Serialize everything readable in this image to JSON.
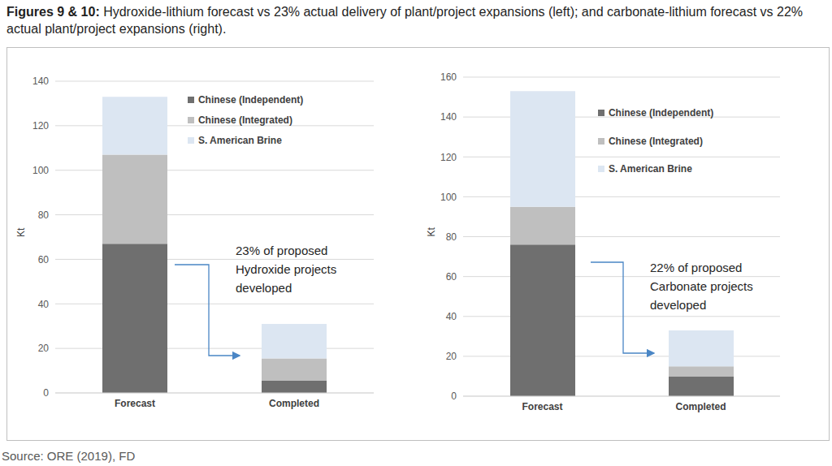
{
  "title": "Figures 9 & 10: Hydroxide-lithium forecast vs 23% actual delivery of plant/project expansions (left); and carbonate-lithium forecast vs 22% actual plant/project expansions (right).",
  "source": "Source: ORE (2019), FD",
  "chart_data": [
    {
      "type": "bar",
      "stacked": true,
      "grid": true,
      "legend": "upper right",
      "y_label": "Kt",
      "annotation": "23% of proposed\nHydroxide projects\ndeveloped",
      "categories": [
        "Forecast",
        "Completed"
      ],
      "ylim": [
        0,
        140
      ],
      "yticks": [
        0,
        20,
        40,
        60,
        80,
        100,
        120,
        140
      ],
      "series": [
        {
          "name": "Chinese (Independent)",
          "color": "#6f6f6f",
          "values": [
            67,
            5.5
          ]
        },
        {
          "name": "Chinese (Integrated)",
          "color": "#bfbfbf",
          "values": [
            40,
            10
          ]
        },
        {
          "name": "S. American Brine",
          "color": "#dce6f2",
          "values": [
            26,
            15.5
          ]
        }
      ]
    },
    {
      "type": "bar",
      "stacked": true,
      "grid": true,
      "legend": "upper right",
      "y_label": "Kt",
      "annotation": "22% of proposed\nCarbonate projects\ndeveloped",
      "categories": [
        "Forecast",
        "Completed"
      ],
      "ylim": [
        0,
        160
      ],
      "yticks": [
        0,
        20,
        40,
        60,
        80,
        100,
        120,
        140,
        160
      ],
      "series": [
        {
          "name": "Chinese (Independent)",
          "color": "#6f6f6f",
          "values": [
            76,
            10
          ]
        },
        {
          "name": "Chinese (Integrated)",
          "color": "#bfbfbf",
          "values": [
            19,
            5
          ]
        },
        {
          "name": "S. American Brine",
          "color": "#dce6f2",
          "values": [
            58,
            18
          ]
        }
      ]
    }
  ]
}
